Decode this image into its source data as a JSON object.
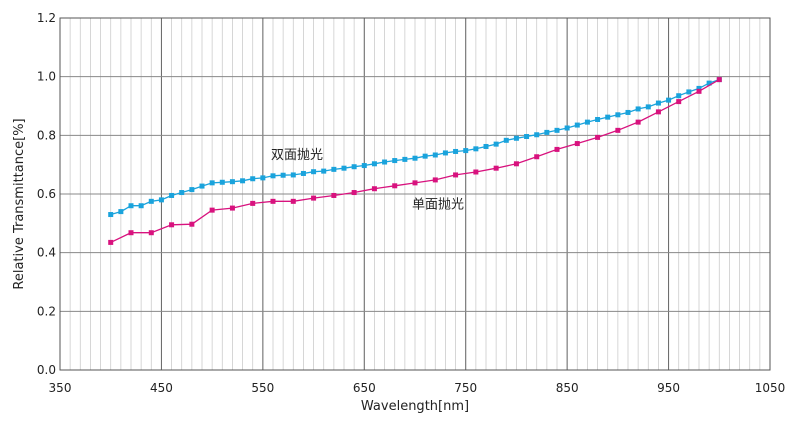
{
  "chart_data": {
    "type": "line",
    "title": "",
    "xlabel": "Wavelength[nm]",
    "ylabel": "Relative Transmittance[%]",
    "xlim": [
      350,
      1050
    ],
    "ylim": [
      0.0,
      1.2
    ],
    "x_ticks": [
      "350",
      "450",
      "550",
      "650",
      "750",
      "850",
      "950",
      "1050"
    ],
    "y_ticks": [
      "0.0",
      "0.2",
      "0.4",
      "0.6",
      "0.8",
      "1.0",
      "1.2"
    ],
    "x_tick_values": [
      350,
      450,
      550,
      650,
      750,
      850,
      950,
      1050
    ],
    "y_tick_values": [
      0.0,
      0.2,
      0.4,
      0.6,
      0.8,
      1.0,
      1.2
    ],
    "grid": true,
    "minor_grid_x_step": 10,
    "series": [
      {
        "name": "双面抛光",
        "color": "#1aa3dc",
        "marker": "square",
        "x": [
          400,
          410,
          420,
          430,
          440,
          450,
          460,
          470,
          480,
          490,
          500,
          510,
          520,
          530,
          540,
          550,
          560,
          570,
          580,
          590,
          600,
          610,
          620,
          630,
          640,
          650,
          660,
          670,
          680,
          690,
          700,
          710,
          720,
          730,
          740,
          750,
          760,
          770,
          780,
          790,
          800,
          810,
          820,
          830,
          840,
          850,
          860,
          870,
          880,
          890,
          900,
          910,
          920,
          930,
          940,
          950,
          960,
          970,
          980,
          990,
          1000
        ],
        "y": [
          0.53,
          0.54,
          0.56,
          0.56,
          0.575,
          0.58,
          0.595,
          0.605,
          0.615,
          0.627,
          0.638,
          0.64,
          0.642,
          0.645,
          0.652,
          0.655,
          0.662,
          0.664,
          0.665,
          0.67,
          0.676,
          0.678,
          0.684,
          0.688,
          0.693,
          0.697,
          0.703,
          0.709,
          0.714,
          0.718,
          0.722,
          0.729,
          0.733,
          0.74,
          0.745,
          0.748,
          0.754,
          0.762,
          0.77,
          0.783,
          0.79,
          0.796,
          0.802,
          0.81,
          0.817,
          0.825,
          0.835,
          0.845,
          0.854,
          0.862,
          0.87,
          0.878,
          0.89,
          0.897,
          0.91,
          0.92,
          0.935,
          0.948,
          0.96,
          0.978,
          0.99
        ]
      },
      {
        "name": "单面抛光",
        "color": "#d8127e",
        "marker": "square",
        "x": [
          400,
          420,
          440,
          460,
          480,
          500,
          520,
          540,
          560,
          580,
          600,
          620,
          640,
          660,
          680,
          700,
          720,
          740,
          760,
          780,
          800,
          820,
          840,
          860,
          880,
          900,
          920,
          940,
          960,
          980,
          1000
        ],
        "y": [
          0.435,
          0.468,
          0.468,
          0.495,
          0.497,
          0.545,
          0.552,
          0.568,
          0.575,
          0.575,
          0.586,
          0.595,
          0.605,
          0.618,
          0.628,
          0.638,
          0.648,
          0.665,
          0.675,
          0.688,
          0.703,
          0.727,
          0.752,
          0.772,
          0.793,
          0.817,
          0.845,
          0.88,
          0.915,
          0.95,
          0.99
        ]
      }
    ],
    "annotations": [
      {
        "text": "双面抛光",
        "x": 558,
        "y": 0.72
      },
      {
        "text": "单面抛光",
        "x": 697,
        "y": 0.55
      }
    ]
  }
}
